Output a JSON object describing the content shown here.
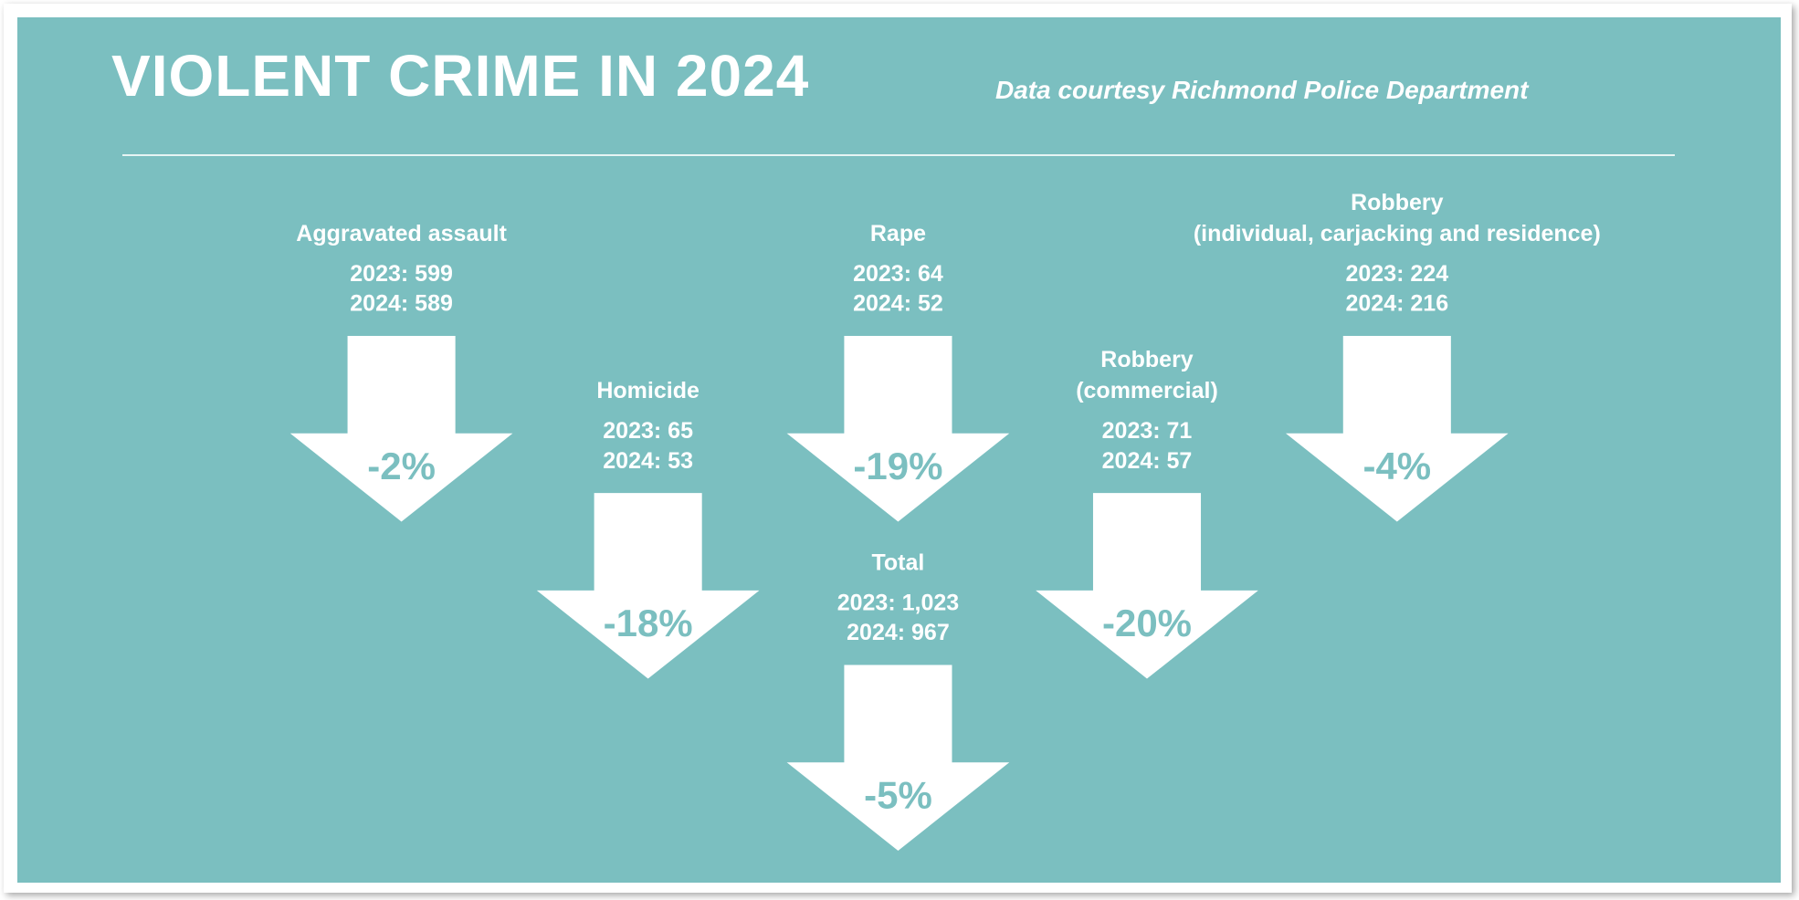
{
  "header": {
    "title": "VIOLENT CRIME IN 2024",
    "source": "Data courtesy Richmond Police Department"
  },
  "items": [
    {
      "label": [
        "Aggravated assault"
      ],
      "lines": [
        "2023: 599",
        "2024: 589"
      ],
      "change": "-2%"
    },
    {
      "label": [
        "Homicide"
      ],
      "lines": [
        "2023: 65",
        "2024: 53"
      ],
      "change": "-18%"
    },
    {
      "label": [
        "Rape"
      ],
      "lines": [
        "2023: 64",
        "2024: 52"
      ],
      "change": "-19%"
    },
    {
      "label": [
        "Total"
      ],
      "lines": [
        "2023: 1,023",
        "2024: 967"
      ],
      "change": "-5%"
    },
    {
      "label": [
        "Robbery",
        "(commercial)"
      ],
      "lines": [
        "2023: 71",
        "2024: 57"
      ],
      "change": "-20%"
    },
    {
      "label": [
        "Robbery",
        "(individual, carjacking and residence)"
      ],
      "lines": [
        "2023: 224",
        "2024: 216"
      ],
      "change": "-4%"
    }
  ]
}
